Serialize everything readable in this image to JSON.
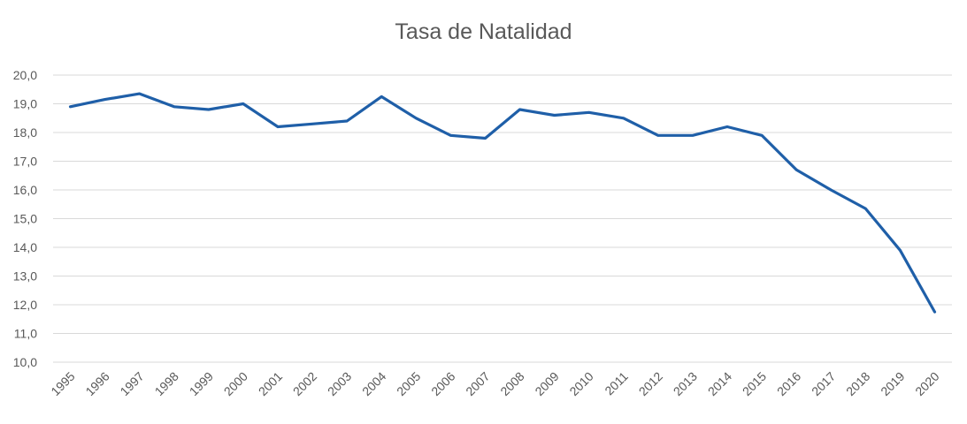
{
  "chart_data": {
    "type": "line",
    "title": "Tasa de Natalidad",
    "xlabel": "",
    "ylabel": "",
    "x": [
      "1995",
      "1996",
      "1997",
      "1998",
      "1999",
      "2000",
      "2001",
      "2002",
      "2003",
      "2004",
      "2005",
      "2006",
      "2007",
      "2008",
      "2009",
      "2010",
      "2011",
      "2012",
      "2013",
      "2014",
      "2015",
      "2016",
      "2017",
      "2018",
      "2019",
      "2020"
    ],
    "series": [
      {
        "values": [
          18.9,
          19.15,
          19.35,
          18.9,
          18.8,
          19.0,
          18.2,
          18.3,
          18.4,
          19.25,
          18.5,
          17.9,
          17.8,
          18.8,
          18.6,
          18.7,
          18.5,
          17.9,
          17.9,
          18.2,
          17.9,
          16.7,
          16.0,
          15.35,
          13.9,
          11.75
        ]
      }
    ],
    "yticks": [
      "10,0",
      "11,0",
      "12,0",
      "13,0",
      "14,0",
      "15,0",
      "16,0",
      "17,0",
      "18,0",
      "19,0",
      "20,0"
    ],
    "ylim": [
      10,
      20
    ],
    "grid": true,
    "legend": "none",
    "line_color": "#1f5fa8",
    "grid_color": "#d9d9d9"
  }
}
